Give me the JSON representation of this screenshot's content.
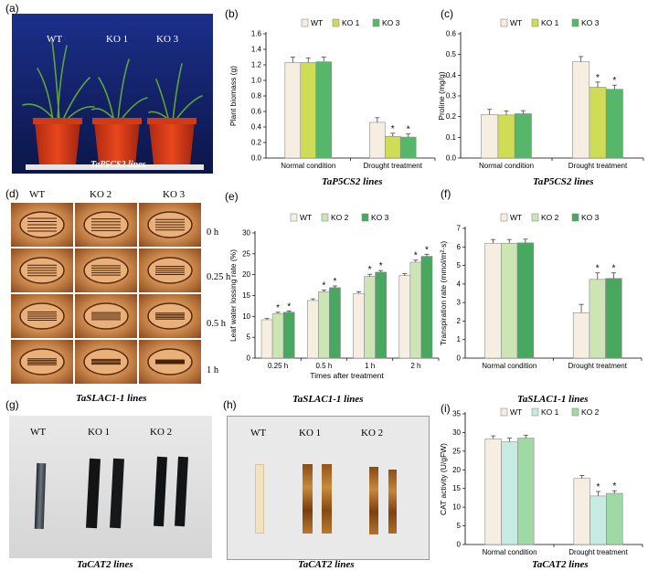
{
  "panels": {
    "a": {
      "label": "(a)",
      "plants": [
        "WT",
        "KO 1",
        "KO 3"
      ],
      "caption": "TaP5CS2 lines"
    },
    "b": {
      "label": "(b)",
      "caption": "TaP5CS2 lines"
    },
    "c": {
      "label": "(c)",
      "caption": "TaP5CS2 lines"
    },
    "d": {
      "label": "(d)",
      "columns": [
        "WT",
        "KO 2",
        "KO 3"
      ],
      "times": [
        "0 h",
        "0.25 h",
        "0.5 h",
        "1 h"
      ],
      "caption": "TaSLAC1-1 lines"
    },
    "e": {
      "label": "(e)",
      "caption": "TaSLAC1-1 lines"
    },
    "f": {
      "label": "(f)",
      "caption": "TaSLAC1-1 lines"
    },
    "g": {
      "label": "(g)",
      "strips": [
        "WT",
        "KO 1",
        "KO 2"
      ],
      "caption": "TaCAT2 lines"
    },
    "h": {
      "label": "(h)",
      "strips": [
        "WT",
        "KO 1",
        "KO 2"
      ],
      "caption": "TaCAT2 lines"
    },
    "i": {
      "label": "(i)",
      "caption": "TaCAT2 lines"
    }
  },
  "colors": {
    "wt": "#f7eee2",
    "yellow": "#cfdc55",
    "green": "#56b76b",
    "lightgreen": "#cde5b5",
    "midgreen": "#48a860",
    "ltcyan": "#c7ebe3",
    "cat_green": "#9fd9a4",
    "edge": "#8a8a8a",
    "err": "#444444"
  },
  "chart_data": [
    {
      "id": "b",
      "type": "bar",
      "ylabel": "Plant  biomass (g)",
      "ylim": [
        0,
        1.6
      ],
      "yticks": [
        0,
        0.2,
        0.4,
        0.6,
        0.8,
        1.0,
        1.2,
        1.4,
        1.6
      ],
      "categories": [
        "Normal condition",
        "Drought treatment"
      ],
      "series": [
        {
          "name": "WT",
          "values": [
            1.23,
            0.46
          ],
          "err": [
            0.07,
            0.06
          ],
          "sig": [
            false,
            false
          ]
        },
        {
          "name": "KO 1",
          "values": [
            1.23,
            0.28
          ],
          "err": [
            0.06,
            0.04
          ],
          "sig": [
            false,
            true
          ]
        },
        {
          "name": "KO 3",
          "values": [
            1.24,
            0.27
          ],
          "err": [
            0.06,
            0.04
          ],
          "sig": [
            false,
            true
          ]
        }
      ]
    },
    {
      "id": "c",
      "type": "bar",
      "ylabel": "Proline (mg/g)",
      "ylim": [
        0,
        0.6
      ],
      "yticks": [
        0,
        0.1,
        0.2,
        0.3,
        0.4,
        0.5,
        0.6
      ],
      "categories": [
        "Normal condition",
        "Drought treatment"
      ],
      "series": [
        {
          "name": "WT",
          "values": [
            0.21,
            0.465
          ],
          "err": [
            0.025,
            0.025
          ],
          "sig": [
            false,
            false
          ]
        },
        {
          "name": "KO 1",
          "values": [
            0.208,
            0.342
          ],
          "err": [
            0.02,
            0.025
          ],
          "sig": [
            false,
            true
          ]
        },
        {
          "name": "KO 3",
          "values": [
            0.214,
            0.332
          ],
          "err": [
            0.015,
            0.02
          ],
          "sig": [
            false,
            true
          ]
        }
      ]
    },
    {
      "id": "e",
      "type": "bar",
      "ylabel": "Leaf water lossing rate (%)",
      "xlabel": "Times after treatment",
      "ylim": [
        0,
        30
      ],
      "yticks": [
        0,
        5,
        10,
        15,
        20,
        25,
        30
      ],
      "categories": [
        "0.25 h",
        "0.5 h",
        "1 h",
        "2 h"
      ],
      "series": [
        {
          "name": "WT",
          "values": [
            9.2,
            13.8,
            15.5,
            19.8
          ],
          "err": [
            0.3,
            0.4,
            0.4,
            0.5
          ],
          "sig": [
            false,
            false,
            false,
            false
          ]
        },
        {
          "name": "KO 2",
          "values": [
            10.7,
            15.9,
            19.6,
            23.0
          ],
          "err": [
            0.3,
            0.4,
            0.5,
            0.5
          ],
          "sig": [
            true,
            true,
            true,
            true
          ]
        },
        {
          "name": "KO 3",
          "values": [
            11.0,
            16.9,
            20.6,
            24.4
          ],
          "err": [
            0.3,
            0.4,
            0.4,
            0.5
          ],
          "sig": [
            true,
            true,
            true,
            true
          ]
        }
      ]
    },
    {
      "id": "f",
      "type": "bar",
      "ylabel": "Transpiration rate (mmol/m²·s)",
      "ylim": [
        0,
        7
      ],
      "yticks": [
        0,
        1,
        2,
        3,
        4,
        5,
        6,
        7
      ],
      "categories": [
        "Normal condition",
        "Drought treatment"
      ],
      "series": [
        {
          "name": "WT",
          "values": [
            6.2,
            2.45
          ],
          "err": [
            0.2,
            0.45
          ],
          "sig": [
            false,
            false
          ]
        },
        {
          "name": "KO 2",
          "values": [
            6.2,
            4.25
          ],
          "err": [
            0.2,
            0.35
          ],
          "sig": [
            false,
            true
          ]
        },
        {
          "name": "KO 3",
          "values": [
            6.22,
            4.3
          ],
          "err": [
            0.2,
            0.3
          ],
          "sig": [
            false,
            true
          ]
        }
      ]
    },
    {
      "id": "i",
      "type": "bar",
      "ylabel": "CAT activity (U/gFW)",
      "ylim": [
        0,
        35
      ],
      "yticks": [
        0,
        5,
        10,
        15,
        20,
        25,
        30,
        35
      ],
      "categories": [
        "Normal condition",
        "Drought treatment"
      ],
      "series": [
        {
          "name": "WT",
          "values": [
            28.3,
            17.7
          ],
          "err": [
            0.8,
            0.8
          ],
          "sig": [
            false,
            false
          ]
        },
        {
          "name": "KO 1",
          "values": [
            27.5,
            13.0
          ],
          "err": [
            1.0,
            1.2
          ],
          "sig": [
            false,
            true
          ]
        },
        {
          "name": "KO 2",
          "values": [
            28.5,
            13.7
          ],
          "err": [
            0.8,
            0.7
          ],
          "sig": [
            false,
            true
          ]
        }
      ]
    }
  ]
}
